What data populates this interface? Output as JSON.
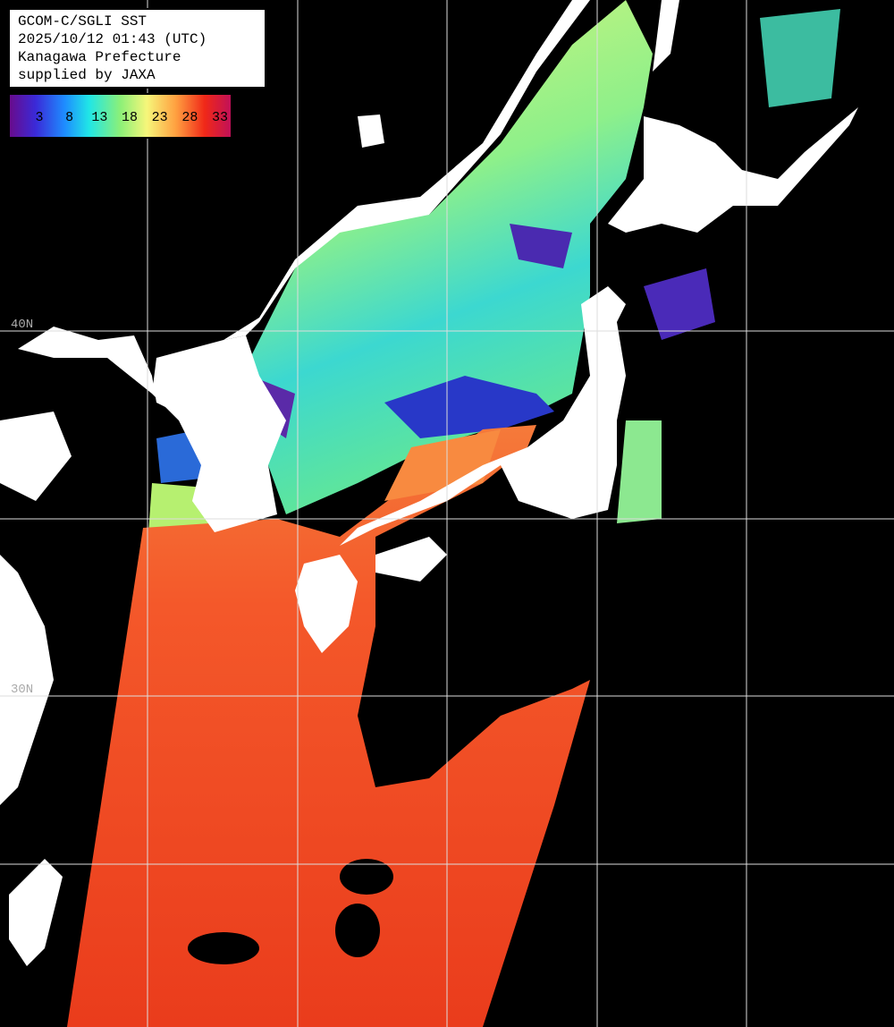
{
  "header": {
    "lines": [
      "GCOM-C/SGLI SST",
      "2025/10/12 01:43 (UTC)",
      "Kanagawa Prefecture",
      "supplied by JAXA"
    ]
  },
  "legend": {
    "ticks": [
      "3",
      "8",
      "13",
      "18",
      "23",
      "28",
      "33"
    ]
  },
  "grid_labels": [
    "40N",
    "30N"
  ]
}
